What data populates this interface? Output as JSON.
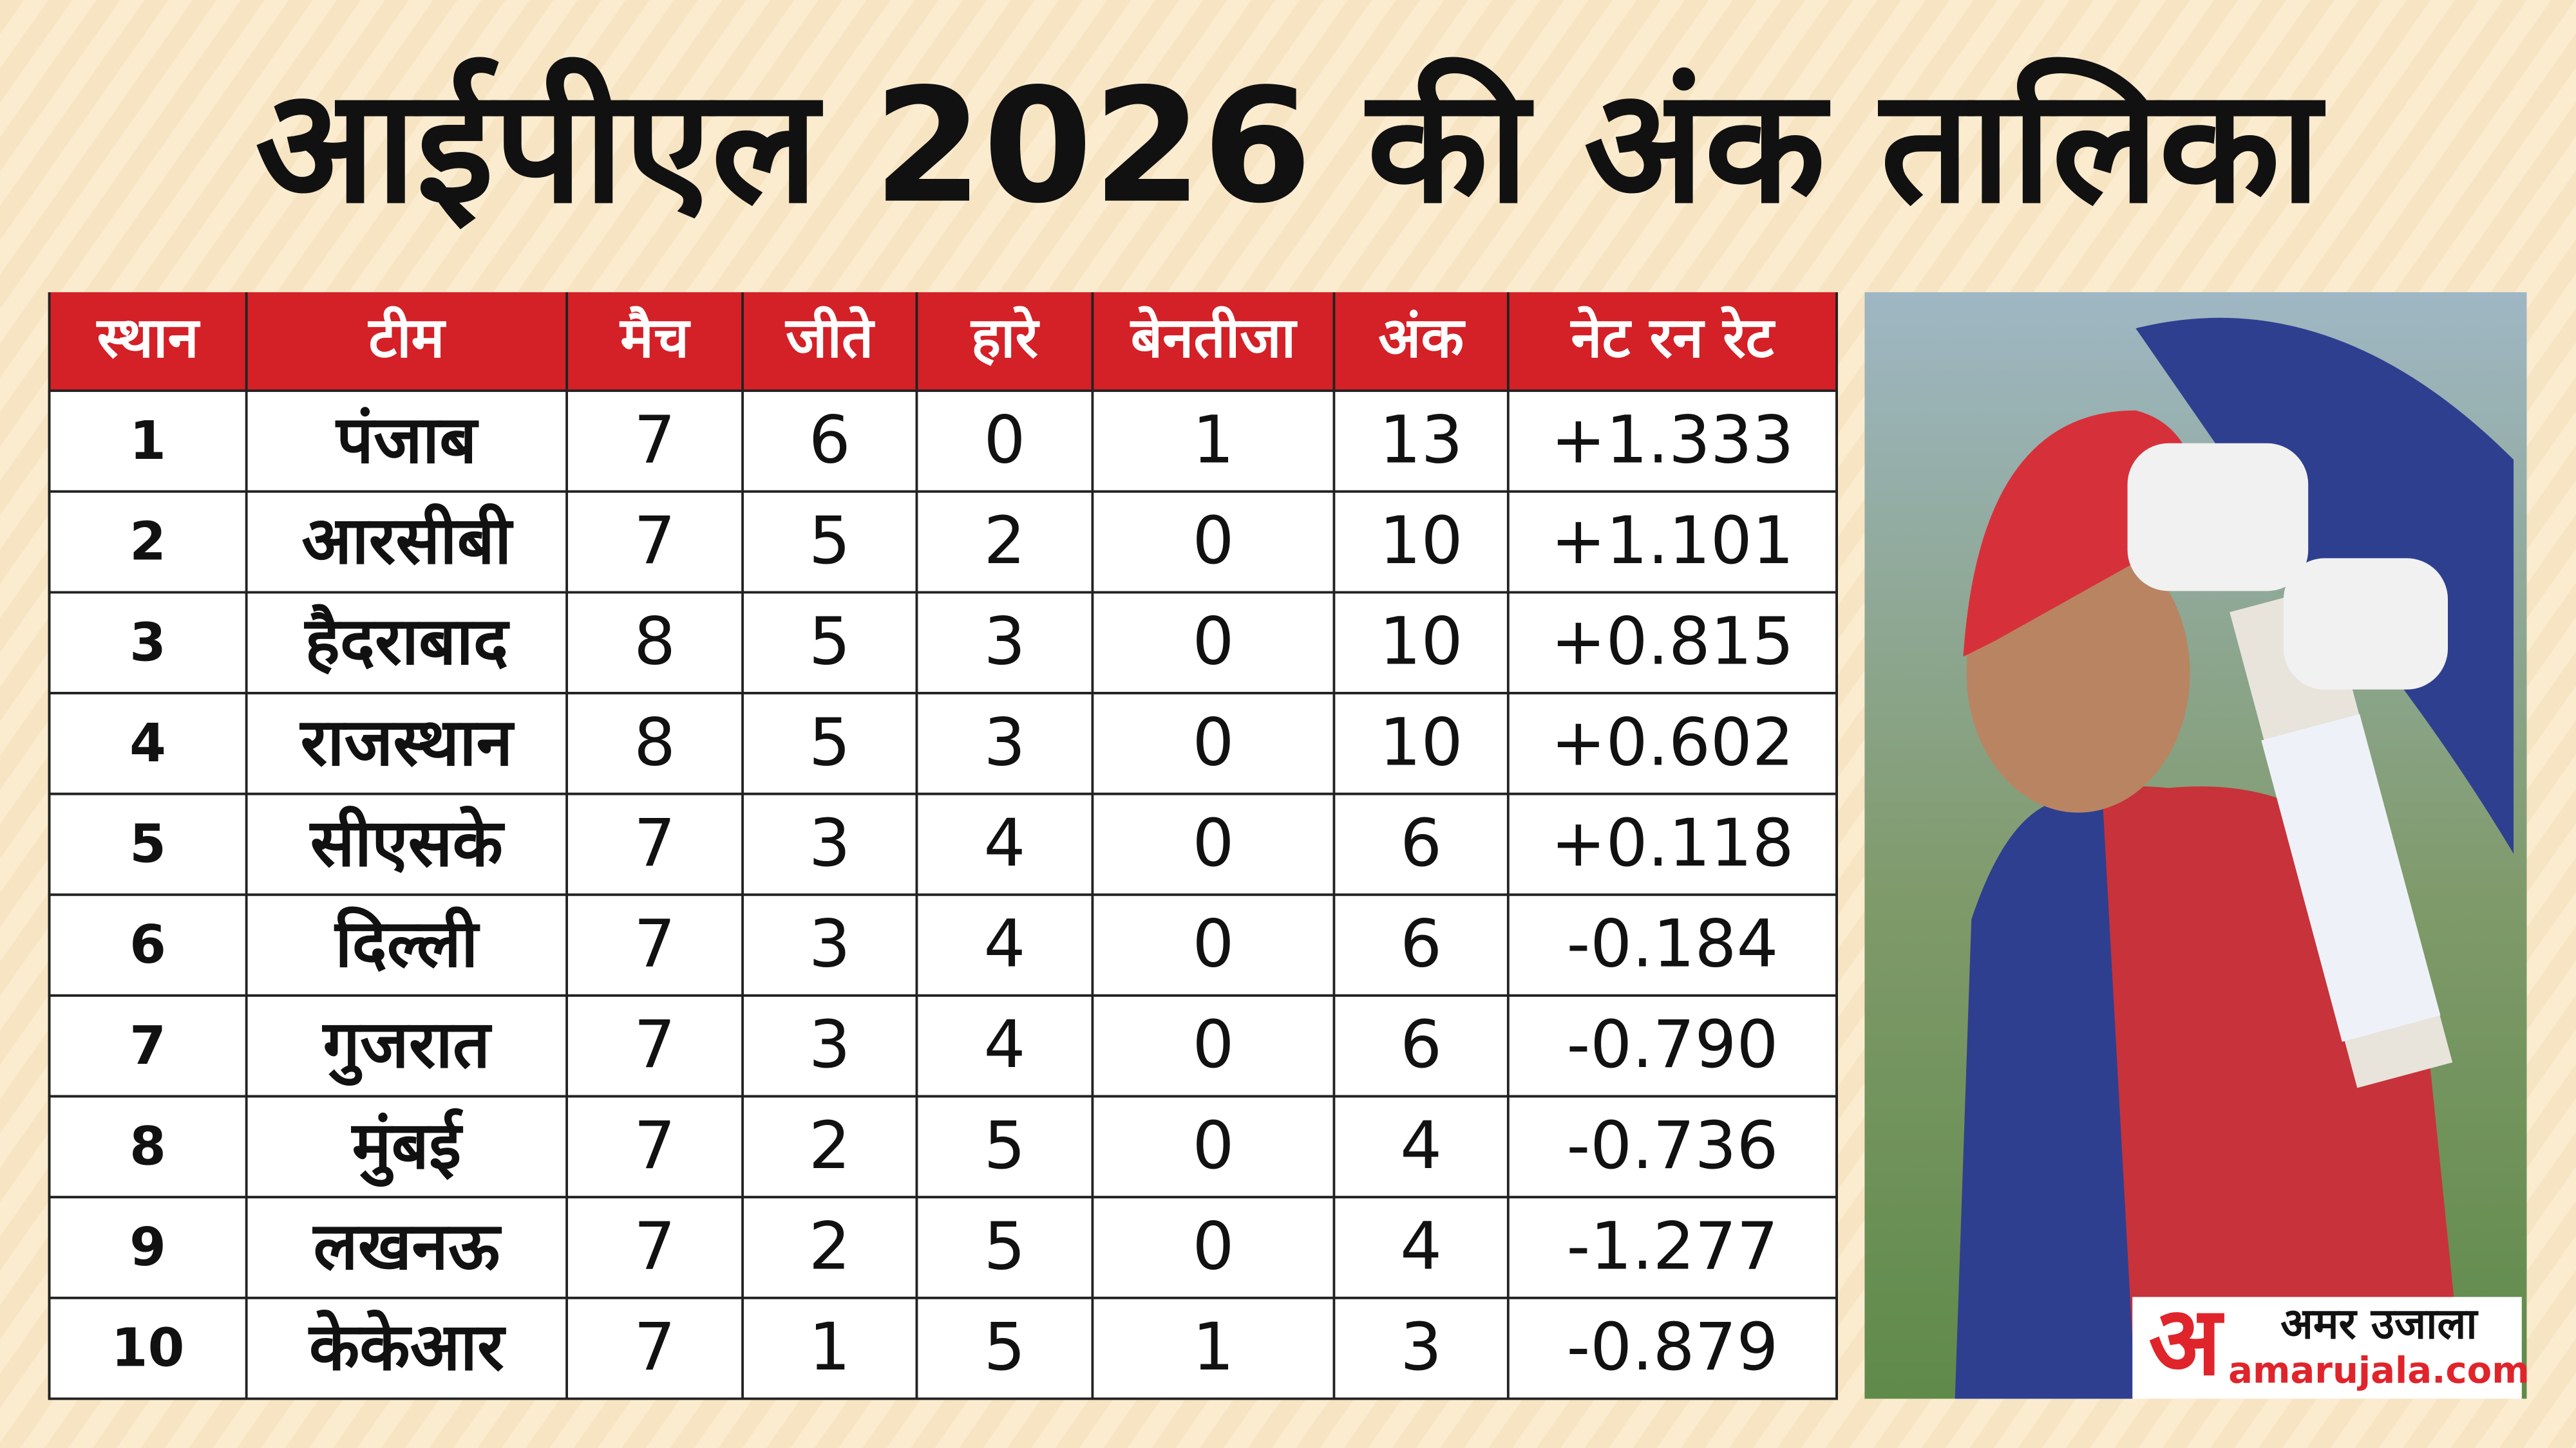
{
  "title": "आईपीएल 2026 की अंक तालिका",
  "table": {
    "header": [
      "स्थान",
      "टीम",
      "मैच",
      "जीते",
      "हारे",
      "बेनतीजा",
      "अंक",
      "नेट रन रेट"
    ],
    "rows": [
      [
        1,
        "पंजाब",
        7,
        6,
        0,
        1,
        13,
        "+1.333"
      ],
      [
        2,
        "आरसीबी",
        7,
        5,
        2,
        0,
        10,
        "+1.101"
      ],
      [
        3,
        "हैदराबाद",
        8,
        5,
        3,
        0,
        10,
        "+0.815"
      ],
      [
        4,
        "राजस्थान",
        8,
        5,
        3,
        0,
        10,
        "+0.602"
      ],
      [
        5,
        "सीएसके",
        7,
        3,
        4,
        0,
        6,
        "+0.118"
      ],
      [
        6,
        "दिल्ली",
        7,
        3,
        4,
        0,
        6,
        "-0.184"
      ],
      [
        7,
        "गुजरात",
        7,
        3,
        4,
        0,
        6,
        "-0.790"
      ],
      [
        8,
        "मुंबई",
        7,
        2,
        5,
        0,
        4,
        "-0.736"
      ],
      [
        9,
        "लखनऊ",
        7,
        2,
        5,
        0,
        4,
        "-1.277"
      ],
      [
        10,
        "केकेआर",
        7,
        1,
        5,
        1,
        3,
        "-0.879"
      ]
    ]
  },
  "logo": {
    "mark": "अ",
    "name": "अमर उजाला",
    "site": "amarujala.com"
  }
}
